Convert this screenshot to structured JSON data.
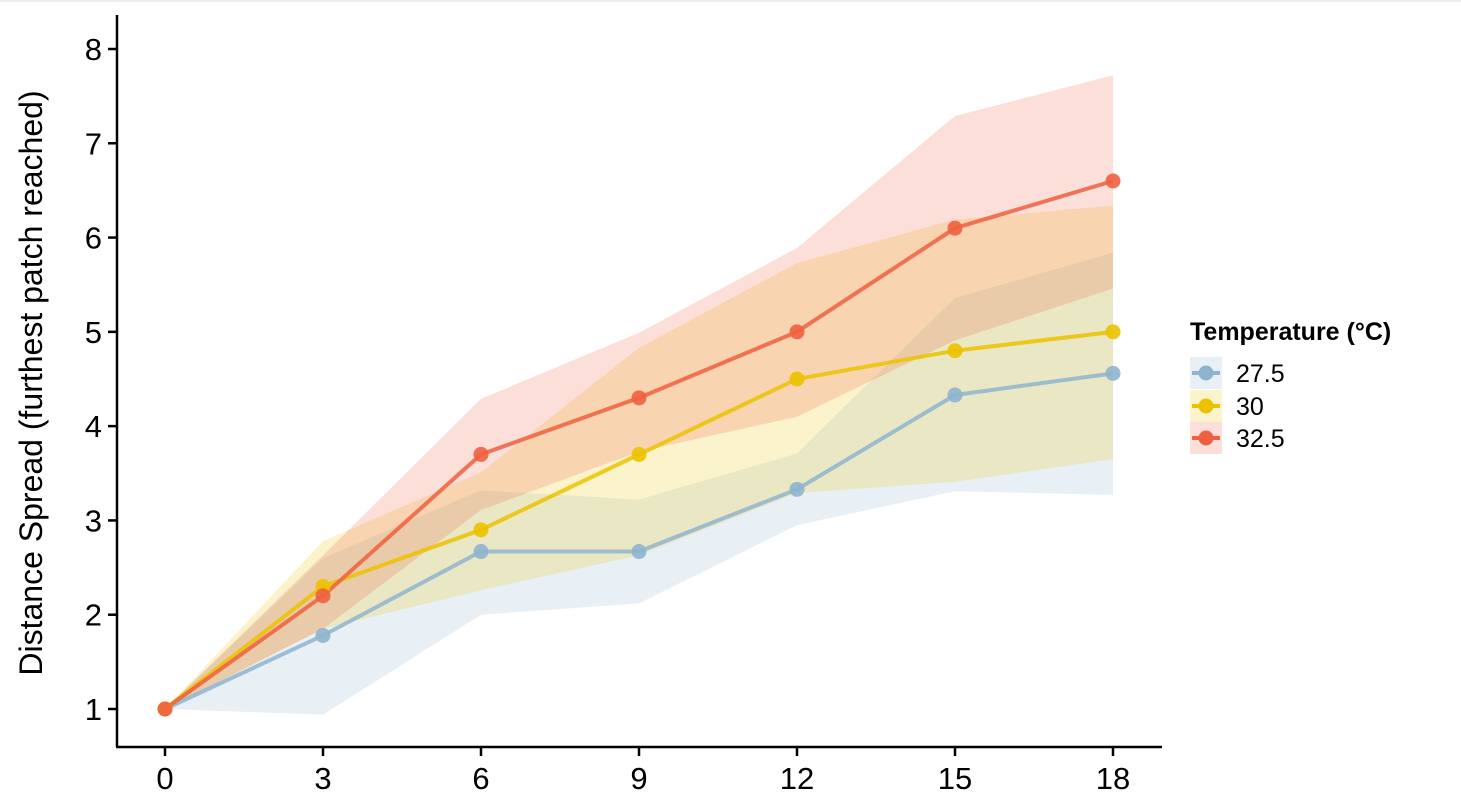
{
  "chart_data": {
    "type": "line",
    "title": "",
    "xlabel": "",
    "ylabel": "Distance Spread (furthest patch reached)",
    "x": [
      0,
      3,
      6,
      9,
      12,
      15,
      18
    ],
    "xticks": [
      "0",
      "3",
      "6",
      "9",
      "12",
      "15",
      "18"
    ],
    "yticks": [
      "1",
      "2",
      "3",
      "4",
      "5",
      "6",
      "7",
      "8"
    ],
    "xlim": [
      -1.5,
      19.5
    ],
    "ylim": [
      0.6,
      8.4
    ],
    "grid": false,
    "legend": {
      "title": "Temperature (°C)",
      "placement": "right"
    },
    "series": [
      {
        "name": "27.5",
        "color": "#8fb4cf",
        "values": [
          1,
          1.78,
          2.67,
          2.67,
          3.33,
          4.33,
          4.56
        ],
        "lower": [
          1,
          0.94,
          2.0,
          2.12,
          2.95,
          3.31,
          3.27
        ],
        "upper": [
          1,
          2.6,
          3.32,
          3.22,
          3.71,
          5.36,
          5.84
        ]
      },
      {
        "name": "30",
        "color": "#ecc200",
        "values": [
          1,
          2.3,
          2.9,
          3.7,
          4.5,
          4.8,
          5.0
        ],
        "lower": [
          1,
          1.85,
          2.26,
          2.63,
          3.29,
          3.41,
          3.65
        ],
        "upper": [
          1,
          2.78,
          3.51,
          4.83,
          5.73,
          6.19,
          6.34
        ]
      },
      {
        "name": "32.5",
        "color": "#ee6040",
        "values": [
          1,
          2.2,
          3.7,
          4.3,
          5.0,
          6.1,
          6.6
        ],
        "lower": [
          1,
          1.85,
          3.11,
          3.73,
          4.1,
          4.91,
          5.46
        ],
        "upper": [
          1,
          2.63,
          4.29,
          4.99,
          5.89,
          7.29,
          7.72
        ]
      }
    ]
  }
}
